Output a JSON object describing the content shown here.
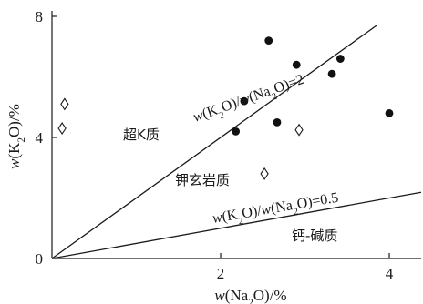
{
  "chart_data": {
    "type": "scatter",
    "xlabel": "w(Na2O)/%",
    "ylabel": "w(K2O)/%",
    "xlim": [
      0,
      4.4
    ],
    "ylim": [
      0,
      8
    ],
    "x_ticks": [
      2,
      4
    ],
    "y_ticks": [
      0,
      4,
      8
    ],
    "x_tick_labels": [
      "2",
      "4"
    ],
    "y_tick_labels": [
      "0",
      "4",
      "8"
    ],
    "reference_lines": [
      {
        "ratio": 2,
        "label": "w(K2O)/w(Na2O)=2"
      },
      {
        "ratio": 0.5,
        "label": "w(K2O)/w(Na2O)=0.5"
      }
    ],
    "regions": [
      {
        "label": "超K质"
      },
      {
        "label": "钾玄岩质"
      },
      {
        "label": "钙-碱质"
      }
    ],
    "series": [
      {
        "marker": "filled-circle",
        "points": [
          {
            "x": 2.18,
            "y": 4.2
          },
          {
            "x": 2.28,
            "y": 5.2
          },
          {
            "x": 2.57,
            "y": 7.2
          },
          {
            "x": 2.67,
            "y": 4.5
          },
          {
            "x": 2.9,
            "y": 6.4
          },
          {
            "x": 3.32,
            "y": 6.1
          },
          {
            "x": 3.42,
            "y": 6.6
          },
          {
            "x": 4.0,
            "y": 4.8
          }
        ]
      },
      {
        "marker": "open-diamond",
        "points": [
          {
            "x": 0.15,
            "y": 5.1
          },
          {
            "x": 0.12,
            "y": 4.3
          },
          {
            "x": 2.52,
            "y": 2.8
          },
          {
            "x": 2.93,
            "y": 4.25
          }
        ]
      }
    ]
  }
}
